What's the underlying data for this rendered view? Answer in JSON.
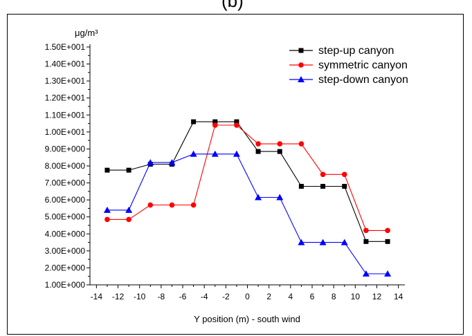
{
  "top_label": "(b)",
  "chart_data": {
    "type": "line",
    "xlabel": "Y position (m) - south wind",
    "ylabel": "μg/m³",
    "xlim": [
      -14.6,
      14.6
    ],
    "ylim": [
      1.0,
      15.0
    ],
    "xticks": [
      -14,
      -12,
      -10,
      -8,
      -6,
      -4,
      -2,
      0,
      2,
      4,
      6,
      8,
      10,
      12,
      14
    ],
    "xtick_labels": [
      "-14",
      "-12",
      "-10",
      "-8",
      "-6",
      "-4",
      "-2",
      "0",
      "2",
      "4",
      "6",
      "8",
      "10",
      "12",
      "14"
    ],
    "yticks": [
      1.0,
      2.0,
      3.0,
      4.0,
      5.0,
      6.0,
      7.0,
      8.0,
      9.0,
      10.0,
      11.0,
      12.0,
      13.0,
      14.0,
      15.0
    ],
    "ytick_labels": [
      "1.00E+000",
      "2.00E+000",
      "3.00E+000",
      "4.00E+000",
      "5.00E+000",
      "6.00E+000",
      "7.00E+000",
      "8.00E+000",
      "9.00E+000",
      "1.00E+001",
      "1.10E+001",
      "1.20E+001",
      "1.30E+001",
      "1.40E+001",
      "1.50E+001"
    ],
    "legend_position": "top-right",
    "grid": false,
    "series": [
      {
        "name": "step-up canyon",
        "color": "#000000",
        "marker": "square",
        "x": [
          -13,
          -11,
          -9,
          -7,
          -5,
          -3,
          -1,
          1,
          3,
          5,
          7,
          9,
          11,
          13
        ],
        "y": [
          7.75,
          7.75,
          8.1,
          8.1,
          10.6,
          10.6,
          10.6,
          8.85,
          8.85,
          6.8,
          6.8,
          6.8,
          3.55,
          3.55
        ]
      },
      {
        "name": "symmetric canyon",
        "color": "#ff0000",
        "marker": "circle",
        "x": [
          -13,
          -11,
          -9,
          -7,
          -5,
          -3,
          -1,
          1,
          3,
          5,
          7,
          9,
          11,
          13
        ],
        "y": [
          4.85,
          4.85,
          5.7,
          5.7,
          5.7,
          10.4,
          10.4,
          9.3,
          9.3,
          9.3,
          7.5,
          7.5,
          4.2,
          4.2
        ]
      },
      {
        "name": "step-down canyon",
        "color": "#0000ff",
        "marker": "triangle",
        "x": [
          -13,
          -11,
          -9,
          -7,
          -5,
          -3,
          -1,
          1,
          3,
          5,
          7,
          9,
          11,
          13
        ],
        "y": [
          5.4,
          5.4,
          8.2,
          8.2,
          8.7,
          8.7,
          8.7,
          6.15,
          6.15,
          3.5,
          3.5,
          3.5,
          1.65,
          1.65
        ]
      }
    ]
  }
}
